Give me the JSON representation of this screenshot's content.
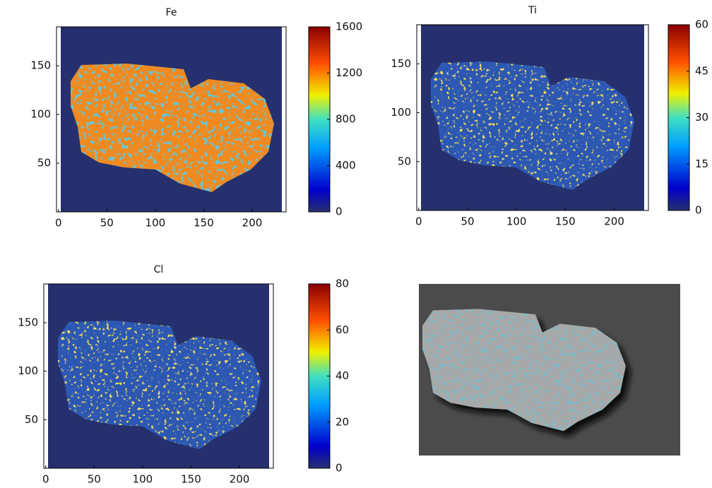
{
  "chart_data": [
    {
      "type": "heatmap",
      "title": "Fe",
      "xlim": [
        -2,
        235
      ],
      "ylim": [
        0,
        190
      ],
      "xticks": [
        0,
        50,
        100,
        150,
        200
      ],
      "yticks": [
        50,
        100,
        150
      ],
      "clim": [
        0,
        1600
      ],
      "cticks": [
        0,
        400,
        800,
        1200,
        1600
      ]
    },
    {
      "type": "heatmap",
      "title": "Ti",
      "xlim": [
        -2,
        235
      ],
      "ylim": [
        0,
        190
      ],
      "xticks": [
        0,
        50,
        100,
        150,
        200
      ],
      "yticks": [
        50,
        100,
        150
      ],
      "clim": [
        0,
        60
      ],
      "cticks": [
        0,
        15,
        30,
        45,
        60
      ]
    },
    {
      "type": "heatmap",
      "title": "Cl",
      "xlim": [
        -2,
        235
      ],
      "ylim": [
        0,
        190
      ],
      "xticks": [
        0,
        50,
        100,
        150,
        200
      ],
      "yticks": [
        50,
        100,
        150
      ],
      "clim": [
        0,
        80
      ],
      "cticks": [
        0,
        20,
        40,
        60,
        80
      ]
    }
  ]
}
